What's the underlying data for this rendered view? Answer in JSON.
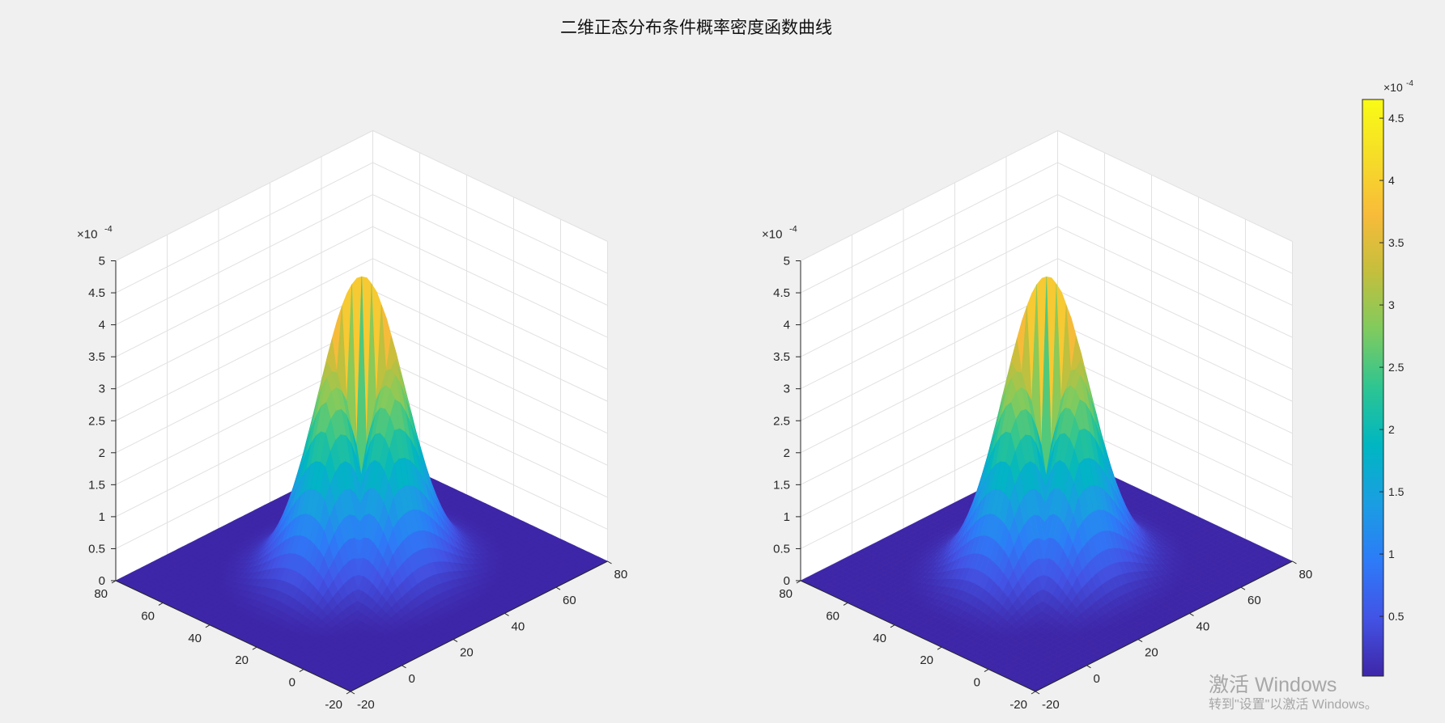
{
  "window": {
    "figure_title": "二维正态分布条件概率密度函数曲线"
  },
  "os_watermark": {
    "line1": "激活 Windows",
    "line2": "转到\"设置\"以激活 Windows。"
  },
  "colors": {
    "background": "#f0f0f0",
    "axes_face": "#ffffff",
    "grid": "#e1e1e1",
    "axis_line": "#262626",
    "text": "#262626",
    "colormap": [
      "#3e26a8",
      "#4353e5",
      "#2d7bf8",
      "#1a9ee2",
      "#00b6c2",
      "#2dc592",
      "#7fcb5f",
      "#c3bf3d",
      "#f8bb3a",
      "#f6dd28",
      "#f9fb15"
    ]
  },
  "chart_data": [
    {
      "type": "surface",
      "render": "mesh",
      "description_function": "bivariate normal conditional density, two peaks separated by a notch",
      "x": {
        "ticks": [
          -20,
          0,
          20,
          40,
          60,
          80
        ],
        "lim": [
          -20,
          80
        ]
      },
      "y": {
        "ticks": [
          -20,
          0,
          20,
          40,
          60,
          80
        ],
        "lim": [
          -20,
          80
        ]
      },
      "z": {
        "ticks": [
          0,
          0.5,
          1,
          1.5,
          2,
          2.5,
          3,
          3.5,
          4,
          4.5,
          5
        ],
        "tick_labels": [
          "0",
          "0.5",
          "1",
          "1.5",
          "2",
          "2.5",
          "3",
          "3.5",
          "4",
          "4.5",
          "5"
        ],
        "lim": [
          0,
          5
        ],
        "exponent_label": "×10",
        "exponent": "-4"
      },
      "surface_params": {
        "peak_value_e4": 4.6,
        "center_x": 30,
        "center_y": 30,
        "sigma": 12.5,
        "notch_half_width": 5
      },
      "grid": true
    },
    {
      "type": "surface",
      "render": "surf",
      "x": {
        "ticks": [
          -20,
          0,
          20,
          40,
          60,
          80
        ],
        "lim": [
          -20,
          80
        ]
      },
      "y": {
        "ticks": [
          -20,
          0,
          20,
          40,
          60,
          80
        ],
        "lim": [
          -20,
          80
        ]
      },
      "z": {
        "ticks": [
          0,
          0.5,
          1,
          1.5,
          2,
          2.5,
          3,
          3.5,
          4,
          4.5,
          5
        ],
        "tick_labels": [
          "0",
          "0.5",
          "1",
          "1.5",
          "2",
          "2.5",
          "3",
          "3.5",
          "4",
          "4.5",
          "5"
        ],
        "lim": [
          0,
          5
        ],
        "exponent_label": "×10",
        "exponent": "-4"
      },
      "surface_params": {
        "peak_value_e4": 4.6,
        "center_x": 30,
        "center_y": 30,
        "sigma": 12.5,
        "notch_half_width": 5
      },
      "grid": true,
      "colorbar": {
        "ticks": [
          0.5,
          1,
          1.5,
          2,
          2.5,
          3,
          3.5,
          4,
          4.5
        ],
        "tick_labels": [
          "0.5",
          "1",
          "1.5",
          "2",
          "2.5",
          "3",
          "3.5",
          "4",
          "4.5"
        ],
        "lim": [
          0.02,
          4.65
        ],
        "exponent_label": "×10",
        "exponent": "-4"
      }
    }
  ]
}
